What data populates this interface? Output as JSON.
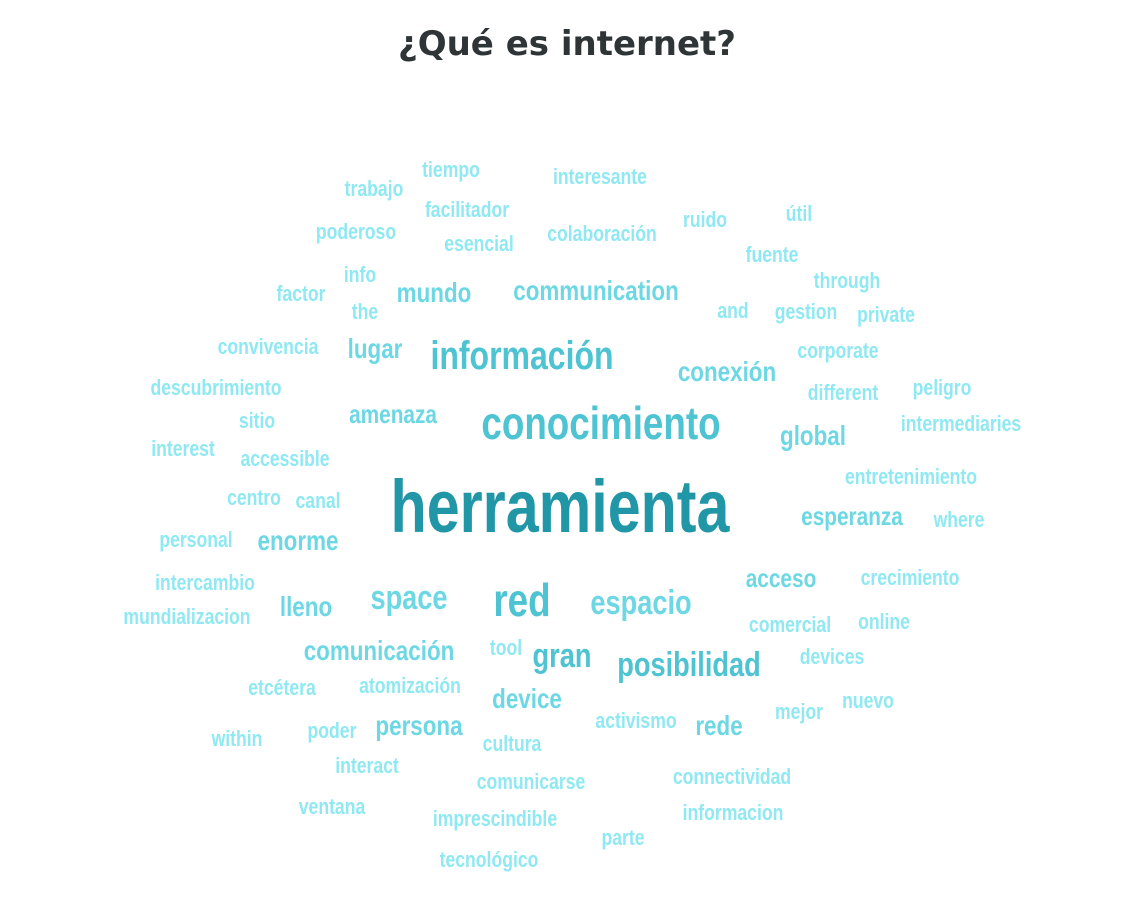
{
  "title": "¿Qué es internet?",
  "colors": {
    "level1": "#2196a6",
    "level2": "#4ec3d1",
    "level3": "#6dd8e4",
    "level4": "#8fe8f2",
    "level5": "#aef2f8"
  },
  "words": [
    {
      "text": "herramienta",
      "weight": 1.0
    },
    {
      "text": "conocimiento",
      "weight": 0.55
    },
    {
      "text": "información",
      "weight": 0.5
    },
    {
      "text": "red",
      "weight": 0.5
    },
    {
      "text": "posibilidad",
      "weight": 0.42
    },
    {
      "text": "espacio",
      "weight": 0.38
    },
    {
      "text": "space",
      "weight": 0.38
    },
    {
      "text": "communication",
      "weight": 0.35
    },
    {
      "text": "conexión",
      "weight": 0.35
    },
    {
      "text": "gran",
      "weight": 0.35
    },
    {
      "text": "mundo",
      "weight": 0.32
    },
    {
      "text": "comunicación",
      "weight": 0.32
    },
    {
      "text": "global",
      "weight": 0.32
    },
    {
      "text": "esperanza",
      "weight": 0.32
    },
    {
      "text": "lugar",
      "weight": 0.32
    },
    {
      "text": "acceso",
      "weight": 0.3
    },
    {
      "text": "device",
      "weight": 0.3
    },
    {
      "text": "persona",
      "weight": 0.3
    },
    {
      "text": "rede",
      "weight": 0.3
    },
    {
      "text": "amenaza",
      "weight": 0.3
    },
    {
      "text": "enorme",
      "weight": 0.3
    },
    {
      "text": "lleno",
      "weight": 0.3
    },
    {
      "text": "interesante",
      "weight": 0.2
    },
    {
      "text": "tiempo",
      "weight": 0.2
    },
    {
      "text": "trabajo",
      "weight": 0.2
    },
    {
      "text": "facilitador",
      "weight": 0.2
    },
    {
      "text": "útil",
      "weight": 0.2
    },
    {
      "text": "ruido",
      "weight": 0.2
    },
    {
      "text": "poderoso",
      "weight": 0.2
    },
    {
      "text": "esencial",
      "weight": 0.2
    },
    {
      "text": "colaboración",
      "weight": 0.2
    },
    {
      "text": "fuente",
      "weight": 0.2
    },
    {
      "text": "info",
      "weight": 0.2
    },
    {
      "text": "through",
      "weight": 0.2
    },
    {
      "text": "factor",
      "weight": 0.2
    },
    {
      "text": "the",
      "weight": 0.2
    },
    {
      "text": "and",
      "weight": 0.2
    },
    {
      "text": "gestion",
      "weight": 0.2
    },
    {
      "text": "private",
      "weight": 0.2
    },
    {
      "text": "convivencia",
      "weight": 0.2
    },
    {
      "text": "corporate",
      "weight": 0.2
    },
    {
      "text": "descubrimiento",
      "weight": 0.2
    },
    {
      "text": "different",
      "weight": 0.2
    },
    {
      "text": "peligro",
      "weight": 0.2
    },
    {
      "text": "sitio",
      "weight": 0.2
    },
    {
      "text": "intermediaries",
      "weight": 0.2
    },
    {
      "text": "interest",
      "weight": 0.2
    },
    {
      "text": "accessible",
      "weight": 0.2
    },
    {
      "text": "entretenimiento",
      "weight": 0.2
    },
    {
      "text": "centro",
      "weight": 0.2
    },
    {
      "text": "canal",
      "weight": 0.2
    },
    {
      "text": "where",
      "weight": 0.2
    },
    {
      "text": "personal",
      "weight": 0.2
    },
    {
      "text": "intercambio",
      "weight": 0.2
    },
    {
      "text": "crecimiento",
      "weight": 0.2
    },
    {
      "text": "mundializacion",
      "weight": 0.2
    },
    {
      "text": "comercial",
      "weight": 0.2
    },
    {
      "text": "online",
      "weight": 0.2
    },
    {
      "text": "tool",
      "weight": 0.2
    },
    {
      "text": "devices",
      "weight": 0.2
    },
    {
      "text": "etcétera",
      "weight": 0.2
    },
    {
      "text": "atomización",
      "weight": 0.2
    },
    {
      "text": "nuevo",
      "weight": 0.2
    },
    {
      "text": "mejor",
      "weight": 0.2
    },
    {
      "text": "activismo",
      "weight": 0.2
    },
    {
      "text": "within",
      "weight": 0.2
    },
    {
      "text": "poder",
      "weight": 0.2
    },
    {
      "text": "cultura",
      "weight": 0.2
    },
    {
      "text": "interact",
      "weight": 0.2
    },
    {
      "text": "connectividad",
      "weight": 0.2
    },
    {
      "text": "comunicarse",
      "weight": 0.2
    },
    {
      "text": "ventana",
      "weight": 0.2
    },
    {
      "text": "informacion",
      "weight": 0.2
    },
    {
      "text": "imprescindible",
      "weight": 0.2
    },
    {
      "text": "parte",
      "weight": 0.2
    },
    {
      "text": "tecnológico",
      "weight": 0.2
    }
  ]
}
